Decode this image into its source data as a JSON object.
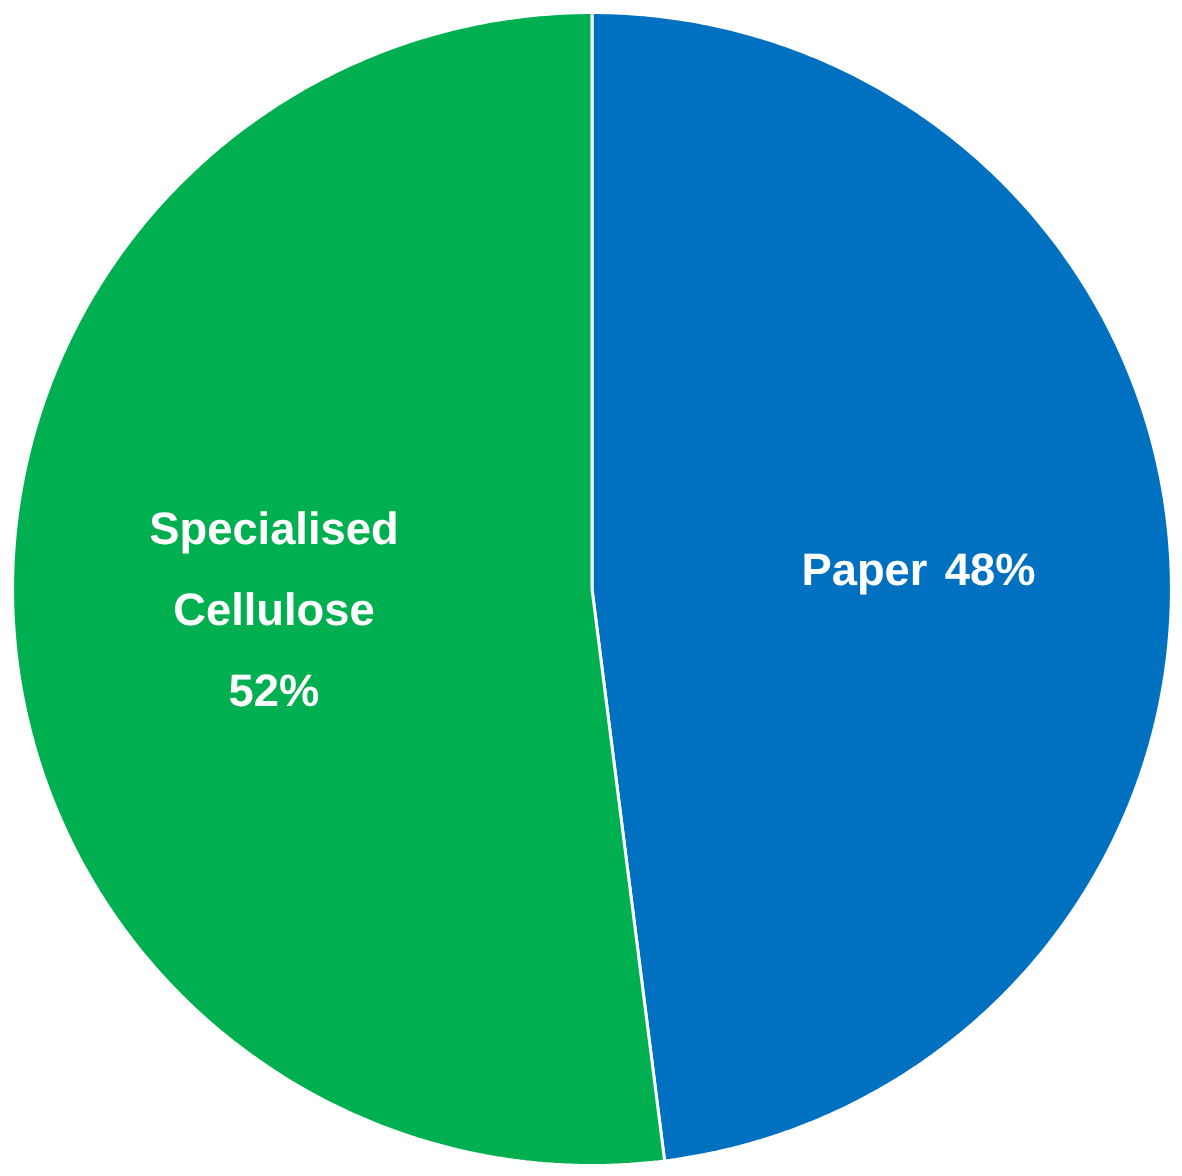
{
  "chart_data": {
    "type": "pie",
    "categories": [
      "Paper",
      "Specialised Cellulose"
    ],
    "values": [
      48,
      52
    ],
    "colors": [
      "#0070c0",
      "#00b050"
    ],
    "value_labels": [
      "48%",
      "52%"
    ]
  }
}
